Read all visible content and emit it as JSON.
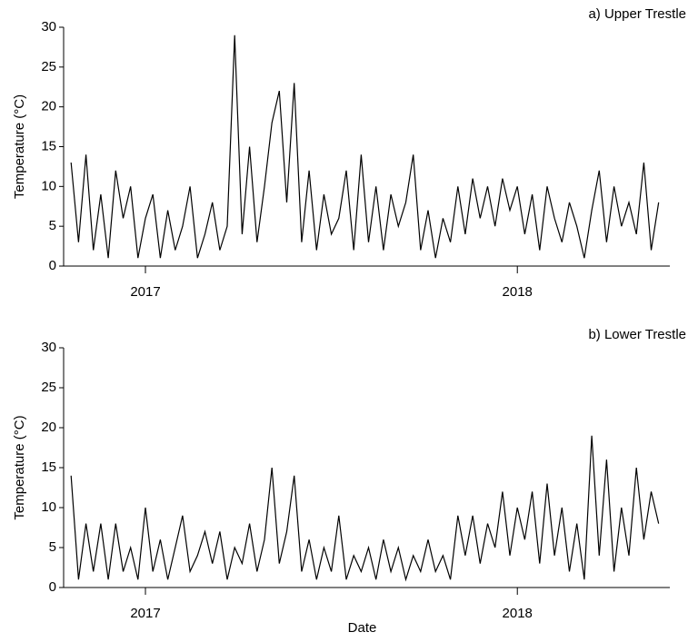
{
  "chart_data": [
    {
      "type": "line",
      "title": "a) Upper Trestle",
      "ylabel": "Temperature (°C)",
      "color": "#000000",
      "x": [
        2016.8,
        2016.82,
        2016.84,
        2016.86,
        2016.88,
        2016.9,
        2016.92,
        2016.94,
        2016.96,
        2016.98,
        2017.0,
        2017.02,
        2017.04,
        2017.06,
        2017.08,
        2017.1,
        2017.12,
        2017.14,
        2017.16,
        2017.18,
        2017.2,
        2017.22,
        2017.24,
        2017.26,
        2017.28,
        2017.3,
        2017.32,
        2017.34,
        2017.36,
        2017.38,
        2017.4,
        2017.42,
        2017.44,
        2017.46,
        2017.48,
        2017.5,
        2017.52,
        2017.54,
        2017.56,
        2017.58,
        2017.6,
        2017.62,
        2017.64,
        2017.66,
        2017.68,
        2017.7,
        2017.72,
        2017.74,
        2017.76,
        2017.78,
        2017.8,
        2017.82,
        2017.84,
        2017.86,
        2017.88,
        2017.9,
        2017.92,
        2017.94,
        2017.96,
        2017.98,
        2018.0,
        2018.02,
        2018.04,
        2018.06,
        2018.08,
        2018.1,
        2018.12,
        2018.14,
        2018.16,
        2018.18,
        2018.2,
        2018.22,
        2018.24,
        2018.26,
        2018.28,
        2018.3,
        2018.32,
        2018.34,
        2018.36,
        2018.38
      ],
      "values": [
        13,
        3,
        14,
        2,
        9,
        1,
        12,
        6,
        10,
        1,
        6,
        9,
        1,
        7,
        2,
        5,
        10,
        1,
        4,
        8,
        2,
        5,
        29,
        4,
        15,
        3,
        10,
        18,
        22,
        8,
        23,
        3,
        12,
        2,
        9,
        4,
        6,
        12,
        2,
        14,
        3,
        10,
        2,
        9,
        5,
        8,
        14,
        2,
        7,
        1,
        6,
        3,
        10,
        4,
        11,
        6,
        10,
        5,
        11,
        7,
        10,
        4,
        9,
        2,
        10,
        6,
        3,
        8,
        5,
        1,
        7,
        12,
        3,
        10,
        5,
        8,
        4,
        13,
        2,
        8
      ],
      "xlim": [
        2016.78,
        2018.41
      ],
      "xticks": [
        2017,
        2018
      ],
      "ylim": [
        0,
        30
      ],
      "yticks": [
        0,
        5,
        10,
        15,
        20,
        25,
        30
      ]
    },
    {
      "type": "line",
      "title": "b) Lower Trestle",
      "ylabel": "Temperature (°C)",
      "xlabel": "Date",
      "color": "#000000",
      "x": [
        2016.8,
        2016.82,
        2016.84,
        2016.86,
        2016.88,
        2016.9,
        2016.92,
        2016.94,
        2016.96,
        2016.98,
        2017.0,
        2017.02,
        2017.04,
        2017.06,
        2017.08,
        2017.1,
        2017.12,
        2017.14,
        2017.16,
        2017.18,
        2017.2,
        2017.22,
        2017.24,
        2017.26,
        2017.28,
        2017.3,
        2017.32,
        2017.34,
        2017.36,
        2017.38,
        2017.4,
        2017.42,
        2017.44,
        2017.46,
        2017.48,
        2017.5,
        2017.52,
        2017.54,
        2017.56,
        2017.58,
        2017.6,
        2017.62,
        2017.64,
        2017.66,
        2017.68,
        2017.7,
        2017.72,
        2017.74,
        2017.76,
        2017.78,
        2017.8,
        2017.82,
        2017.84,
        2017.86,
        2017.88,
        2017.9,
        2017.92,
        2017.94,
        2017.96,
        2017.98,
        2018.0,
        2018.02,
        2018.04,
        2018.06,
        2018.08,
        2018.1,
        2018.12,
        2018.14,
        2018.16,
        2018.18,
        2018.2,
        2018.22,
        2018.24,
        2018.26,
        2018.28,
        2018.3,
        2018.32,
        2018.34,
        2018.36,
        2018.38
      ],
      "values": [
        14,
        1,
        8,
        2,
        8,
        1,
        8,
        2,
        5,
        1,
        10,
        2,
        6,
        1,
        5,
        9,
        2,
        4,
        7,
        3,
        7,
        1,
        5,
        3,
        8,
        2,
        6,
        15,
        3,
        7,
        14,
        2,
        6,
        1,
        5,
        2,
        9,
        1,
        4,
        2,
        5,
        1,
        6,
        2,
        5,
        1,
        4,
        2,
        6,
        2,
        4,
        1,
        9,
        4,
        9,
        3,
        8,
        5,
        12,
        4,
        10,
        6,
        12,
        3,
        13,
        4,
        10,
        2,
        8,
        1,
        19,
        4,
        16,
        2,
        10,
        4,
        15,
        6,
        12,
        8
      ],
      "xlim": [
        2016.78,
        2018.41
      ],
      "xticks": [
        2017,
        2018
      ],
      "ylim": [
        0,
        30
      ],
      "yticks": [
        0,
        5,
        10,
        15,
        20,
        25,
        30
      ]
    }
  ]
}
